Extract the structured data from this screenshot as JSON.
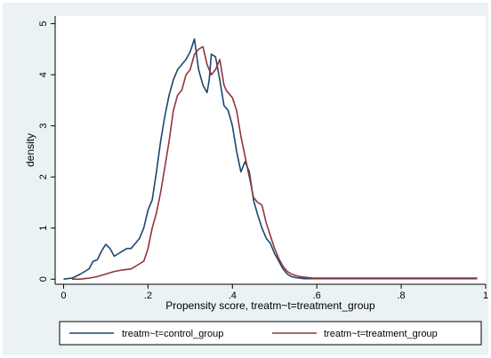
{
  "chart_data": {
    "type": "line",
    "title": "",
    "xlabel": "Propensity score, treatm~t=treatment_group",
    "ylabel": "density",
    "xlim": [
      -0.02,
      1.0
    ],
    "ylim": [
      -0.1,
      5.15
    ],
    "xticks": [
      0,
      0.2,
      0.4,
      0.6,
      0.8,
      1
    ],
    "xtick_labels": [
      "0",
      ".2",
      ".4",
      ".6",
      ".8",
      "1"
    ],
    "yticks": [
      0,
      1,
      2,
      3,
      4,
      5
    ],
    "ytick_labels": [
      "0",
      "1",
      "2",
      "3",
      "4",
      "5"
    ],
    "grid": false,
    "legend": {
      "position": "bottom"
    },
    "series": [
      {
        "name": "treatm~t=control_group",
        "color": "#1a476f",
        "x": [
          0.0,
          0.02,
          0.04,
          0.06,
          0.07,
          0.08,
          0.09,
          0.1,
          0.11,
          0.12,
          0.13,
          0.14,
          0.15,
          0.16,
          0.17,
          0.18,
          0.19,
          0.2,
          0.21,
          0.22,
          0.23,
          0.24,
          0.25,
          0.26,
          0.27,
          0.28,
          0.29,
          0.3,
          0.31,
          0.32,
          0.33,
          0.34,
          0.345,
          0.35,
          0.36,
          0.37,
          0.38,
          0.39,
          0.4,
          0.41,
          0.42,
          0.43,
          0.44,
          0.45,
          0.46,
          0.47,
          0.48,
          0.49,
          0.5,
          0.51,
          0.52,
          0.53,
          0.54,
          0.55,
          0.56,
          0.57,
          0.58,
          0.6,
          0.62,
          0.64,
          0.66,
          0.7,
          0.75,
          0.8,
          0.85,
          0.9,
          0.95,
          0.98
        ],
        "y": [
          0.0,
          0.02,
          0.1,
          0.2,
          0.35,
          0.38,
          0.55,
          0.68,
          0.6,
          0.45,
          0.5,
          0.55,
          0.6,
          0.6,
          0.7,
          0.8,
          1.0,
          1.35,
          1.55,
          2.1,
          2.7,
          3.2,
          3.6,
          3.9,
          4.1,
          4.2,
          4.3,
          4.45,
          4.7,
          4.1,
          3.8,
          3.65,
          3.9,
          4.4,
          4.35,
          3.9,
          3.4,
          3.3,
          3.0,
          2.5,
          2.1,
          2.3,
          2.1,
          1.55,
          1.25,
          1.0,
          0.8,
          0.7,
          0.5,
          0.35,
          0.2,
          0.1,
          0.05,
          0.03,
          0.02,
          0.01,
          0.01,
          0.01,
          0.01,
          0.01,
          0.01,
          0.01,
          0.01,
          0.01,
          0.01,
          0.01,
          0.01,
          0.01
        ]
      },
      {
        "name": "treatm~t=treatment_group",
        "color": "#90353b",
        "x": [
          0.02,
          0.04,
          0.06,
          0.08,
          0.1,
          0.12,
          0.14,
          0.16,
          0.18,
          0.19,
          0.2,
          0.21,
          0.22,
          0.23,
          0.24,
          0.25,
          0.26,
          0.27,
          0.28,
          0.29,
          0.3,
          0.31,
          0.32,
          0.33,
          0.34,
          0.35,
          0.36,
          0.37,
          0.38,
          0.385,
          0.39,
          0.4,
          0.41,
          0.42,
          0.43,
          0.44,
          0.45,
          0.46,
          0.47,
          0.48,
          0.49,
          0.5,
          0.51,
          0.52,
          0.53,
          0.54,
          0.55,
          0.56,
          0.57,
          0.58,
          0.59,
          0.6,
          0.62,
          0.64,
          0.66,
          0.68,
          0.7,
          0.75,
          0.8,
          0.85,
          0.9,
          0.95,
          0.98
        ],
        "y": [
          0.0,
          0.0,
          0.02,
          0.05,
          0.1,
          0.15,
          0.18,
          0.2,
          0.3,
          0.35,
          0.6,
          1.0,
          1.3,
          1.7,
          2.2,
          2.7,
          3.3,
          3.6,
          3.7,
          4.0,
          4.1,
          4.4,
          4.5,
          4.55,
          4.2,
          4.0,
          4.1,
          4.3,
          3.8,
          3.7,
          3.65,
          3.55,
          3.3,
          2.8,
          2.4,
          2.0,
          1.6,
          1.5,
          1.45,
          1.1,
          0.85,
          0.6,
          0.4,
          0.25,
          0.15,
          0.1,
          0.07,
          0.05,
          0.04,
          0.03,
          0.02,
          0.02,
          0.02,
          0.02,
          0.02,
          0.02,
          0.02,
          0.02,
          0.02,
          0.02,
          0.02,
          0.02,
          0.02
        ]
      }
    ]
  }
}
